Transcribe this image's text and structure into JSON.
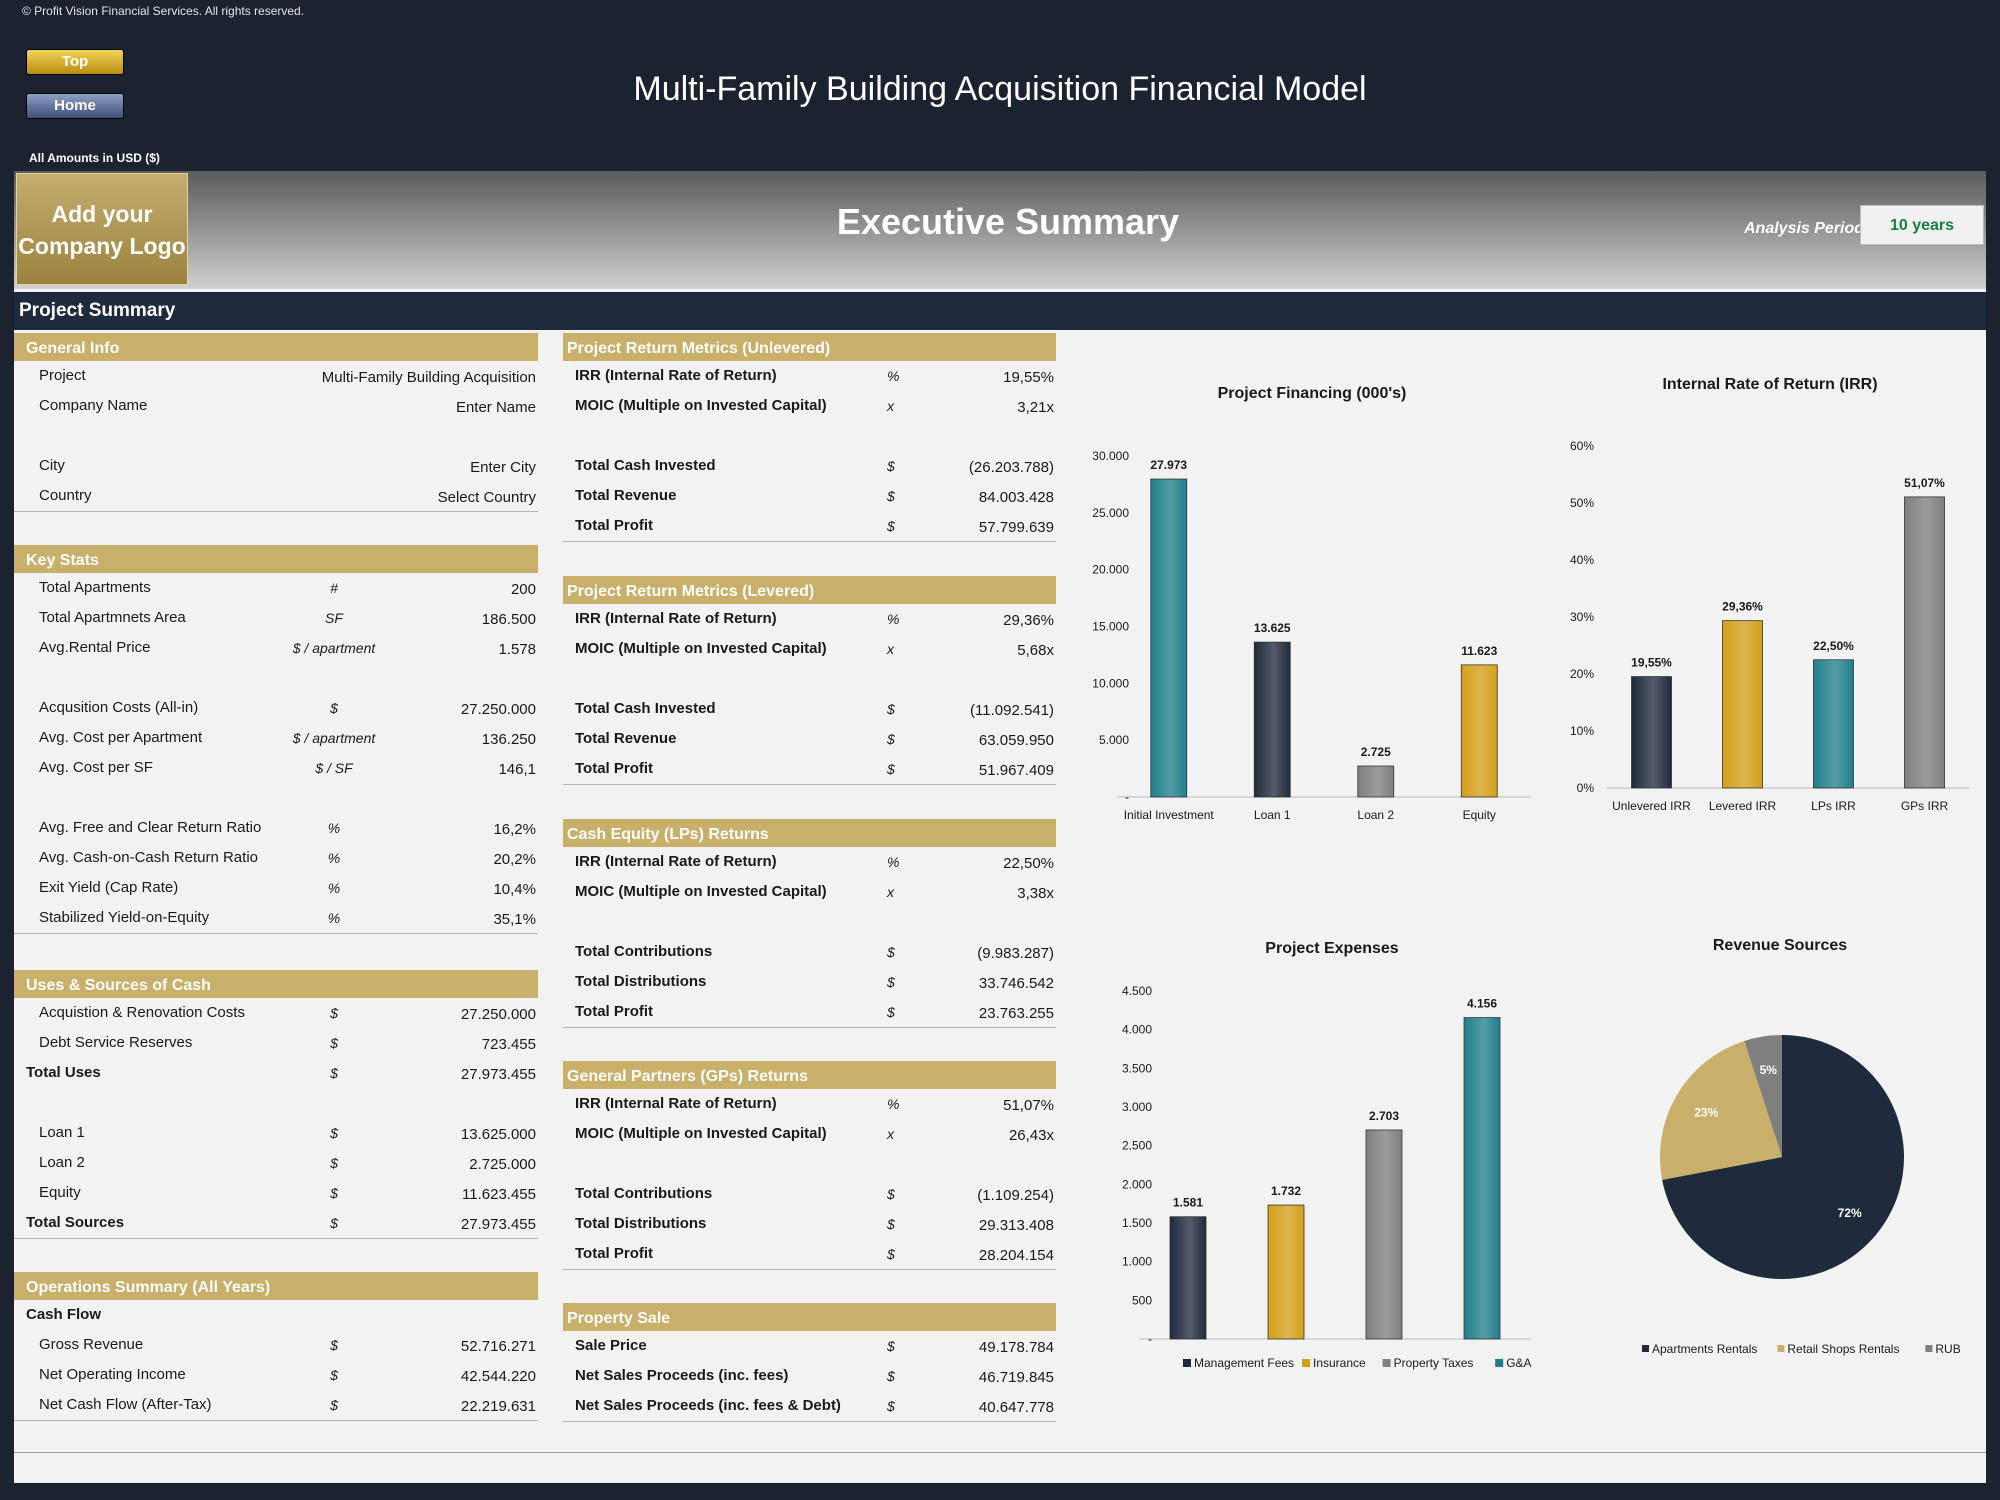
{
  "copyright": "© Profit Vision Financial Services. All rights reserved.",
  "nav": {
    "top": "Top",
    "home": "Home"
  },
  "title": "Multi-Family Building Acquisition Financial Model",
  "amounts": "All Amounts in  USD ($)",
  "logo_line1": "Add your",
  "logo_line2": "Company Logo",
  "banner_title": "Executive Summary",
  "analysis": {
    "label": "Analysis Periods",
    "value": "10 years"
  },
  "project_summary": "Project Summary",
  "general": {
    "title": "General Info",
    "rows": [
      {
        "label": "Project",
        "value": "Multi-Family Building Acquisition"
      },
      {
        "label": "Company Name",
        "value": "Enter Name"
      },
      {
        "label": "City",
        "value": "Enter City"
      },
      {
        "label": "Country",
        "value": "Select Country"
      }
    ]
  },
  "keystats": {
    "title": "Key Stats",
    "rows": [
      {
        "label": "Total Apartments",
        "unit": "#",
        "value": "200"
      },
      {
        "label": "Total Apartmnets Area",
        "unit": "SF",
        "value": "186.500"
      },
      {
        "label": "Avg.Rental Price",
        "unit": "$ / apartment",
        "value": "1.578"
      },
      {
        "label": "Acqusition Costs (All-in)",
        "unit": "$",
        "value": "27.250.000"
      },
      {
        "label": "Avg. Cost per Apartment",
        "unit": "$ / apartment",
        "value": "136.250"
      },
      {
        "label": "Avg. Cost per SF",
        "unit": "$ / SF",
        "value": "146,1"
      },
      {
        "label": "Avg. Free and Clear Return Ratio",
        "unit": "%",
        "value": "16,2%"
      },
      {
        "label": "Avg. Cash-on-Cash Return Ratio",
        "unit": "%",
        "value": "20,2%"
      },
      {
        "label": "Exit Yield (Cap Rate)",
        "unit": "%",
        "value": "10,4%"
      },
      {
        "label": "Stabilized Yield-on-Equity",
        "unit": "%",
        "value": "35,1%"
      }
    ]
  },
  "uses": {
    "title": "Uses & Sources of Cash",
    "rows": [
      {
        "label": "Acquistion & Renovation Costs",
        "unit": "$",
        "value": "27.250.000"
      },
      {
        "label": "Debt Service Reserves",
        "unit": "$",
        "value": "723.455"
      },
      {
        "label": "Total Uses",
        "unit": "$",
        "value": "27.973.455"
      },
      {
        "label": "Loan 1",
        "unit": "$",
        "value": "13.625.000"
      },
      {
        "label": "Loan 2",
        "unit": "$",
        "value": "2.725.000"
      },
      {
        "label": "Equity",
        "unit": "$",
        "value": "11.623.455"
      },
      {
        "label": "Total Sources",
        "unit": "$",
        "value": "27.973.455"
      }
    ]
  },
  "ops": {
    "title": "Operations Summary (All Years)",
    "subtitle": "Cash Flow",
    "rows": [
      {
        "label": "Gross Revenue",
        "unit": "$",
        "value": "52.716.271"
      },
      {
        "label": "Net Operating Income",
        "unit": "$",
        "value": "42.544.220"
      },
      {
        "label": "Net Cash Flow (After-Tax)",
        "unit": "$",
        "value": "22.219.631"
      }
    ]
  },
  "unlev": {
    "title": "Project Return Metrics (Unlevered)",
    "rows": [
      {
        "label": "IRR (Internal Rate of Return)",
        "unit": "%",
        "value": "19,55%"
      },
      {
        "label": "MOIC (Multiple on Invested Capital)",
        "unit": "x",
        "value": "3,21x"
      },
      {
        "label": "Total Cash Invested",
        "unit": "$",
        "value": "(26.203.788)"
      },
      {
        "label": "Total Revenue",
        "unit": "$",
        "value": "84.003.428"
      },
      {
        "label": "Total Profit",
        "unit": "$",
        "value": "57.799.639"
      }
    ]
  },
  "lev": {
    "title": "Project Return Metrics (Levered)",
    "rows": [
      {
        "label": "IRR (Internal Rate of Return)",
        "unit": "%",
        "value": "29,36%"
      },
      {
        "label": "MOIC (Multiple on Invested Capital)",
        "unit": "x",
        "value": "5,68x"
      },
      {
        "label": "Total Cash Invested",
        "unit": "$",
        "value": "(11.092.541)"
      },
      {
        "label": "Total Revenue",
        "unit": "$",
        "value": "63.059.950"
      },
      {
        "label": "Total Profit",
        "unit": "$",
        "value": "51.967.409"
      }
    ]
  },
  "lps": {
    "title": "Cash Equity (LPs) Returns",
    "rows": [
      {
        "label": "IRR (Internal Rate of Return)",
        "unit": "%",
        "value": "22,50%"
      },
      {
        "label": "MOIC (Multiple on Invested Capital)",
        "unit": "x",
        "value": "3,38x"
      },
      {
        "label": "Total Contributions",
        "unit": "$",
        "value": "(9.983.287)"
      },
      {
        "label": "Total Distributions",
        "unit": "$",
        "value": "33.746.542"
      },
      {
        "label": "Total Profit",
        "unit": "$",
        "value": "23.763.255"
      }
    ]
  },
  "gps": {
    "title": "General Partners (GPs) Returns",
    "rows": [
      {
        "label": "IRR (Internal Rate of Return)",
        "unit": "%",
        "value": "51,07%"
      },
      {
        "label": "MOIC (Multiple on Invested Capital)",
        "unit": "x",
        "value": "26,43x"
      },
      {
        "label": "Total Contributions",
        "unit": "$",
        "value": "(1.109.254)"
      },
      {
        "label": "Total Distributions",
        "unit": "$",
        "value": "29.313.408"
      },
      {
        "label": "Total Profit",
        "unit": "$",
        "value": "28.204.154"
      }
    ]
  },
  "sale": {
    "title": "Property Sale",
    "rows": [
      {
        "label": "Sale Price",
        "unit": "$",
        "value": "49.178.784"
      },
      {
        "label": "Net Sales Proceeds (inc. fees)",
        "unit": "$",
        "value": "46.719.845"
      },
      {
        "label": "Net Sales Proceeds (inc. fees & Debt)",
        "unit": "$",
        "value": "40.647.778"
      }
    ]
  },
  "chart_data": [
    {
      "type": "bar",
      "title": "Project Financing (000's)",
      "categories": [
        "Initial Investment",
        "Loan 1",
        "Loan 2",
        "Equity"
      ],
      "values": [
        27973,
        13625,
        2725,
        11623
      ],
      "labels": [
        "27.973",
        "13.625",
        "2.725",
        "11.623"
      ],
      "ylim": [
        0,
        30000
      ],
      "yticks": [
        "-",
        "5.000",
        "10.000",
        "15.000",
        "20.000",
        "25.000",
        "30.000"
      ],
      "colors": [
        "#1f7f8c",
        "#1f2a3c",
        "#7f7f7f",
        "#d4a017"
      ]
    },
    {
      "type": "bar",
      "title": "Internal Rate of Return (IRR)",
      "categories": [
        "Unlevered IRR",
        "Levered IRR",
        "LPs IRR",
        "GPs IRR"
      ],
      "values": [
        19.55,
        29.36,
        22.5,
        51.07
      ],
      "labels": [
        "19,55%",
        "29,36%",
        "22,50%",
        "51,07%"
      ],
      "ylim": [
        0,
        60
      ],
      "yticks": [
        "0%",
        "10%",
        "20%",
        "30%",
        "40%",
        "50%",
        "60%"
      ],
      "colors": [
        "#1f2a3c",
        "#d4a017",
        "#1f7f8c",
        "#7f7f7f"
      ]
    },
    {
      "type": "bar",
      "title": "Project Expenses",
      "categories": [
        "Management Fees",
        "Insurance",
        "Property Taxes",
        "G&A"
      ],
      "values": [
        1581,
        1732,
        2703,
        4156
      ],
      "labels": [
        "1.581",
        "1.732",
        "2.703",
        "4.156"
      ],
      "ylim": [
        0,
        4500
      ],
      "yticks": [
        "-",
        "500",
        "1.000",
        "1.500",
        "2.000",
        "2.500",
        "3.000",
        "3.500",
        "4.000",
        "4.500"
      ],
      "legend": "bottom",
      "colors": [
        "#1f2a3c",
        "#d4a017",
        "#7f7f7f",
        "#1f7f8c"
      ]
    },
    {
      "type": "pie",
      "title": "Revenue Sources",
      "categories": [
        "Apartments Rentals",
        "Retail Shops Rentals",
        "RUBS"
      ],
      "values": [
        72,
        23,
        5
      ],
      "labels": [
        "72%",
        "23%",
        "5%"
      ],
      "legend": "bottom",
      "colors": [
        "#1f2a3c",
        "#c9b06a",
        "#7f7f7f"
      ]
    }
  ]
}
